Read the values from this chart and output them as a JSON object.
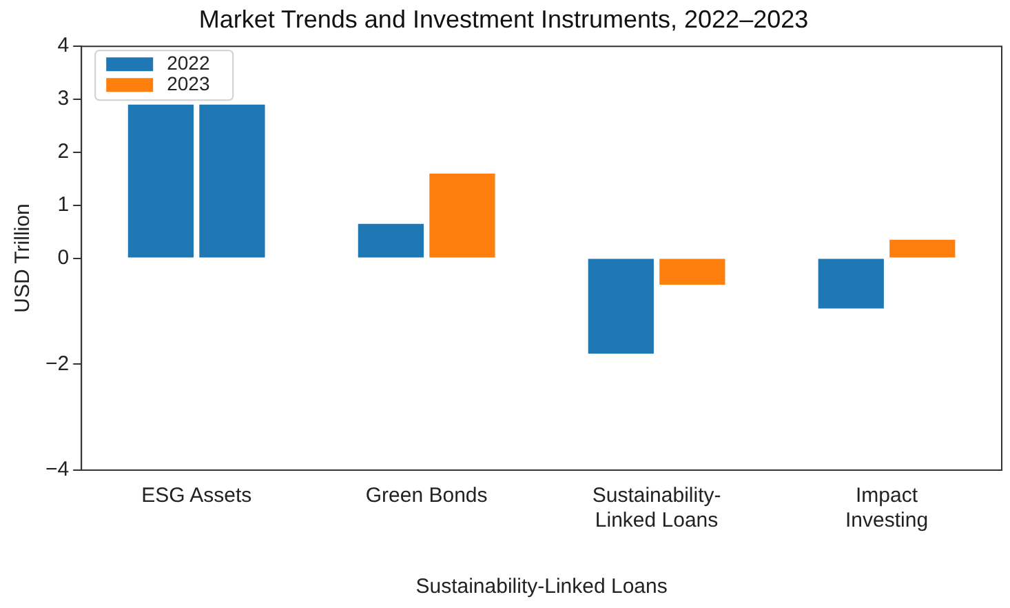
{
  "chart_data": {
    "type": "bar",
    "title": "Market Trends and Investment Instruments, 2022–2023",
    "xlabel": "Sustainability-Linked Loans",
    "ylabel": "USD Trillion",
    "categories": [
      "ESG Assets",
      "Green Bonds",
      "Sustainability-\nLinked Loans",
      "Impact\nInvesting"
    ],
    "series": [
      {
        "name": "2022",
        "color": "#1f77b4",
        "values": [
          2.9,
          0.65,
          -1.8,
          -0.95
        ]
      },
      {
        "name": "2023",
        "color": "#ff7f0e",
        "colors": [
          "#1f77b4",
          "#ff7f0e",
          "#ff7f0e",
          "#ff7f0e"
        ],
        "values": [
          2.9,
          1.6,
          -0.5,
          0.35
        ]
      }
    ],
    "ylim": [
      -4,
      4
    ],
    "yticks": [
      -4,
      -2,
      0,
      1,
      2,
      3,
      4
    ],
    "grid": false,
    "legend": "top left"
  }
}
